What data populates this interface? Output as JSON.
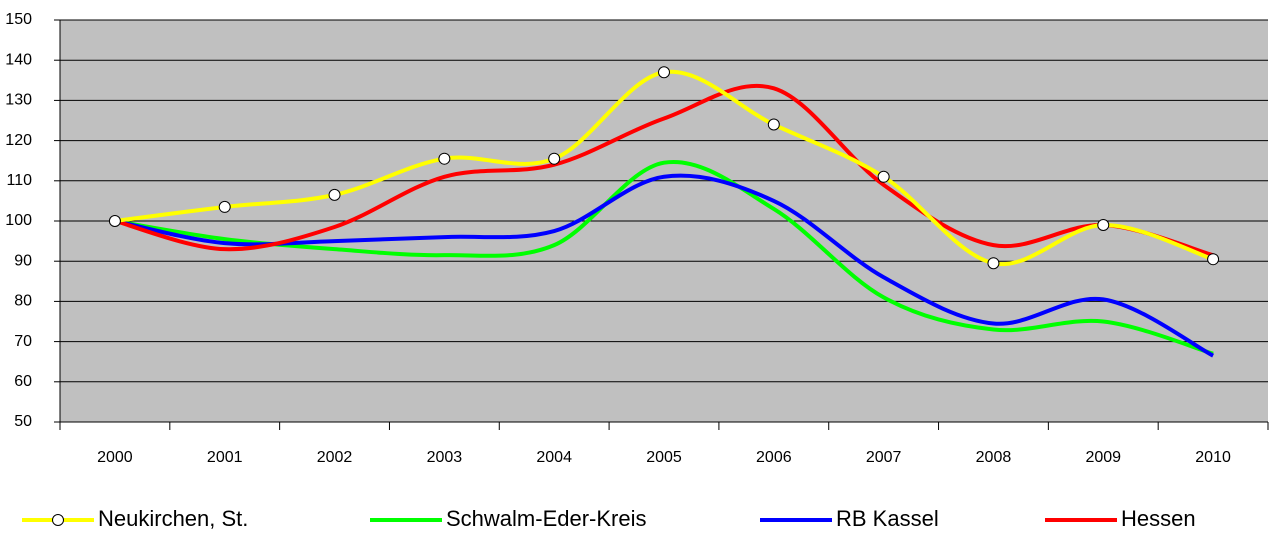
{
  "chart_data": {
    "type": "line",
    "categories": [
      "2000",
      "2001",
      "2002",
      "2003",
      "2004",
      "2005",
      "2006",
      "2007",
      "2008",
      "2009",
      "2010"
    ],
    "series": [
      {
        "name": "Neukirchen, St.",
        "color": "#ffff00",
        "values": [
          100,
          103.5,
          106.5,
          115.5,
          115.5,
          137,
          124,
          111,
          89.5,
          99,
          90.5
        ],
        "marker": true
      },
      {
        "name": "Schwalm-Eder-Kreis",
        "color": "#00ff00",
        "values": [
          100,
          95.5,
          93,
          91.5,
          94,
          114.5,
          103,
          81,
          73,
          75,
          67
        ]
      },
      {
        "name": "RB Kassel",
        "color": "#0000ff",
        "values": [
          100,
          94.5,
          95,
          96,
          97.5,
          111,
          105,
          86,
          74.5,
          80.5,
          66.5
        ]
      },
      {
        "name": "Hessen",
        "color": "#ff0000",
        "values": [
          100,
          93,
          98.5,
          111,
          114,
          125.5,
          133,
          109,
          94,
          99,
          91.5
        ]
      }
    ],
    "ylim": [
      50,
      150
    ],
    "yticks": [
      50,
      60,
      70,
      80,
      90,
      100,
      110,
      120,
      130,
      140,
      150
    ],
    "grid": true,
    "smooth": true,
    "legend": "bottom",
    "plot_background": "#c0c0c0"
  }
}
